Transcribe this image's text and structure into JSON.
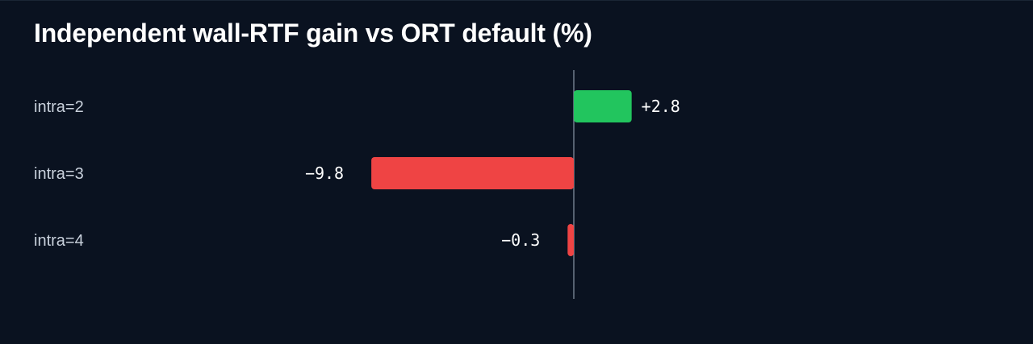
{
  "chart_data": {
    "type": "bar",
    "orientation": "horizontal",
    "title": "Independent wall-RTF gain vs ORT default (%)",
    "xlabel": "",
    "ylabel": "",
    "categories": [
      "intra=2",
      "intra=3",
      "intra=4"
    ],
    "values": [
      2.8,
      -9.8,
      -0.3
    ],
    "value_labels": [
      "+2.8",
      "−9.8",
      "−0.3"
    ],
    "grid": false,
    "legend": "none",
    "colors": {
      "positive": "#22c55e",
      "negative": "#ef4444",
      "zero_line": "#8a96a6",
      "background": "#0a1220"
    }
  }
}
